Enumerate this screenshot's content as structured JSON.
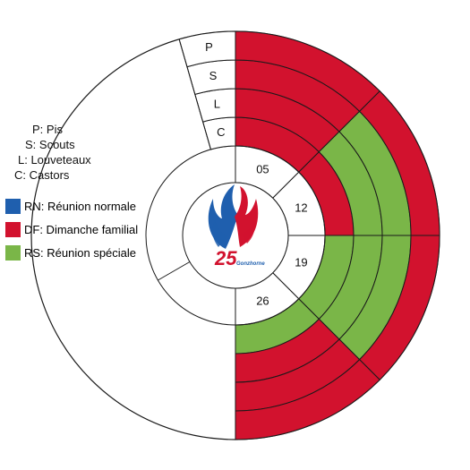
{
  "rings": [
    {
      "key": "C",
      "label": "C"
    },
    {
      "key": "L",
      "label": "L"
    },
    {
      "key": "S",
      "label": "S"
    },
    {
      "key": "P",
      "label": "P"
    }
  ],
  "dates": [
    {
      "label": "05"
    },
    {
      "label": "12"
    },
    {
      "label": "19"
    },
    {
      "label": "26"
    }
  ],
  "types": {
    "RN": {
      "label": "RN: Réunion normale",
      "color": "#1f5fae"
    },
    "DF": {
      "label": "DF: Dimanche familial",
      "color": "#d2122e"
    },
    "RS": {
      "label": "RS: Réunion spéciale",
      "color": "#7ab648"
    }
  },
  "grid": {
    "05": {
      "C": "DF",
      "L": "DF",
      "S": "DF",
      "P": "DF"
    },
    "12": {
      "C": "DF",
      "L": "RS",
      "S": "RS",
      "P": "DF"
    },
    "19": {
      "C": "RS",
      "L": "RS",
      "S": "RS",
      "P": "DF"
    },
    "26": {
      "C": "RS",
      "L": "DF",
      "S": "DF",
      "P": "DF"
    }
  },
  "legend": {
    "sections": [
      {
        "label": "P: Pis"
      },
      {
        "label": "S: Scouts"
      },
      {
        "label": "L: Louveteaux"
      },
      {
        "label": "C: Castors"
      }
    ]
  },
  "logo": {
    "number": "25",
    "caption": "Gonzhorne"
  }
}
